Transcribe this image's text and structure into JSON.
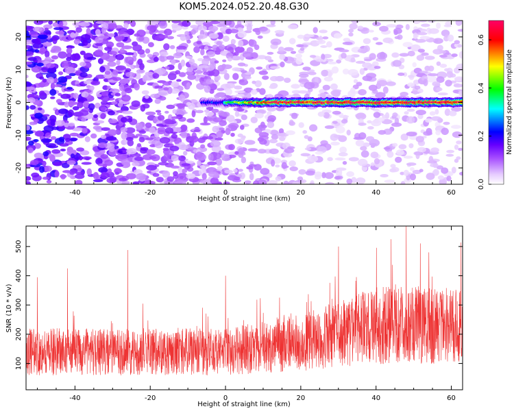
{
  "title": "KOM5.2024.052.20.48.G30",
  "chart_data": [
    {
      "type": "heatmap",
      "xlabel": "Height of straight line (km)",
      "ylabel": "Frequency (Hz)",
      "xlim": [
        -53,
        63
      ],
      "ylim": [
        -25,
        25
      ],
      "xticks": [
        -40,
        -20,
        0,
        20,
        40,
        60
      ],
      "yticks": [
        -20,
        -10,
        0,
        10,
        20
      ],
      "colorbar": {
        "label": "Normalized spectral amplitude",
        "range": [
          0,
          0.68
        ],
        "ticks": [
          0.0,
          0.2,
          0.4,
          0.6
        ],
        "colormap": [
          "#ffffff",
          "#e6ccff",
          "#a64dff",
          "#6600ff",
          "#0000ff",
          "#00ffff",
          "#00ff00",
          "#ffff00",
          "#ff0000",
          "#ff0066"
        ]
      },
      "features": {
        "signal_band_frequency_hz": 0,
        "signal_band_x_range_km": [
          0,
          63
        ],
        "signal_band_peak_amplitude": 0.65,
        "noise_amplitude_left": 0.15,
        "noise_amplitude_right": 0.05
      },
      "grid": false
    },
    {
      "type": "line",
      "xlabel": "Height of straight line (km)",
      "ylabel": "SNR (10 * v/v)",
      "xlim": [
        -53,
        63
      ],
      "ylim": [
        10,
        570
      ],
      "xticks": [
        -40,
        -20,
        0,
        20,
        40,
        60
      ],
      "yticks": [
        100,
        200,
        300,
        400,
        500
      ],
      "color": "#ee3333",
      "grid": false,
      "trend": {
        "x": [
          -53,
          0,
          20,
          40,
          63
        ],
        "mean": [
          140,
          140,
          170,
          230,
          230
        ]
      },
      "spikes": [
        {
          "x": -50,
          "y": 395
        },
        {
          "x": -42,
          "y": 425
        },
        {
          "x": -26,
          "y": 488
        },
        {
          "x": 0,
          "y": 400
        },
        {
          "x": 30,
          "y": 500
        },
        {
          "x": 44,
          "y": 525
        },
        {
          "x": 48,
          "y": 570
        },
        {
          "x": 54,
          "y": 480
        }
      ]
    }
  ]
}
